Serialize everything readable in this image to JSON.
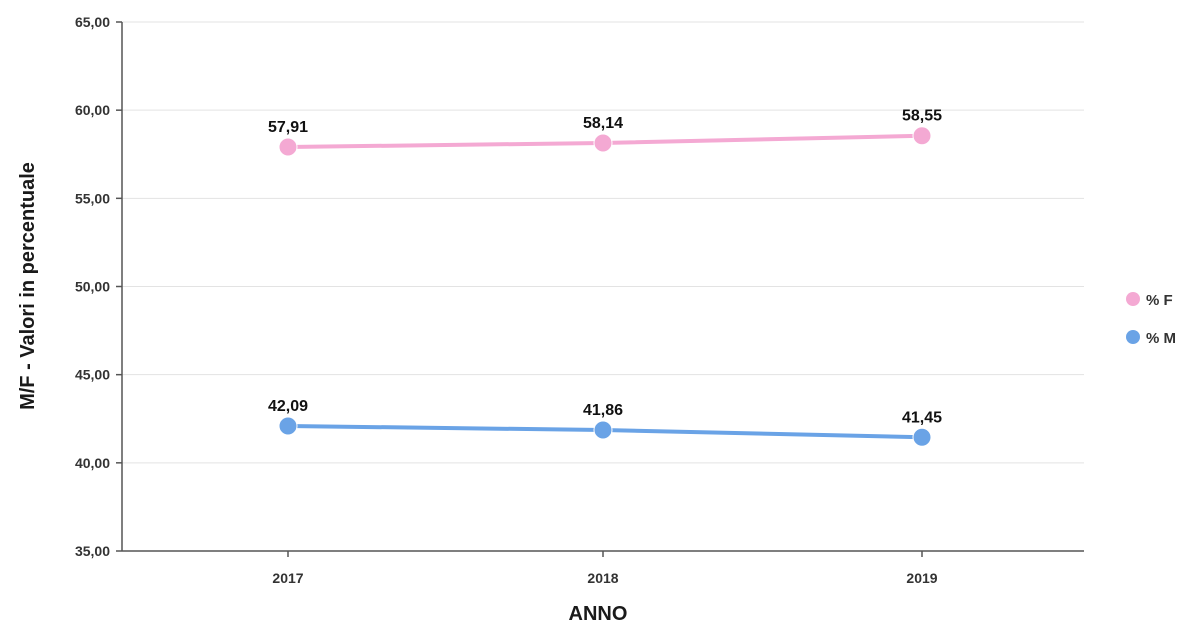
{
  "chart_data": {
    "type": "line",
    "title": "",
    "xlabel": "ANNO",
    "ylabel": "M/F - Valori in percentuale",
    "categories": [
      "2017",
      "2018",
      "2019"
    ],
    "ylim": [
      35,
      65
    ],
    "yticks": [
      35,
      40,
      45,
      50,
      55,
      60,
      65
    ],
    "ytick_labels": [
      "35,00",
      "40,00",
      "45,00",
      "50,00",
      "55,00",
      "60,00",
      "65,00"
    ],
    "grid": true,
    "legend_position": "right",
    "series": [
      {
        "name": "% F",
        "color": "#f4a9d3",
        "values": [
          57.91,
          58.14,
          58.55
        ],
        "labels": [
          "57,91",
          "58,14",
          "58,55"
        ]
      },
      {
        "name": "% M",
        "color": "#6aa3e6",
        "values": [
          42.09,
          41.86,
          41.45
        ],
        "labels": [
          "42,09",
          "41,86",
          "41,45"
        ]
      }
    ]
  }
}
